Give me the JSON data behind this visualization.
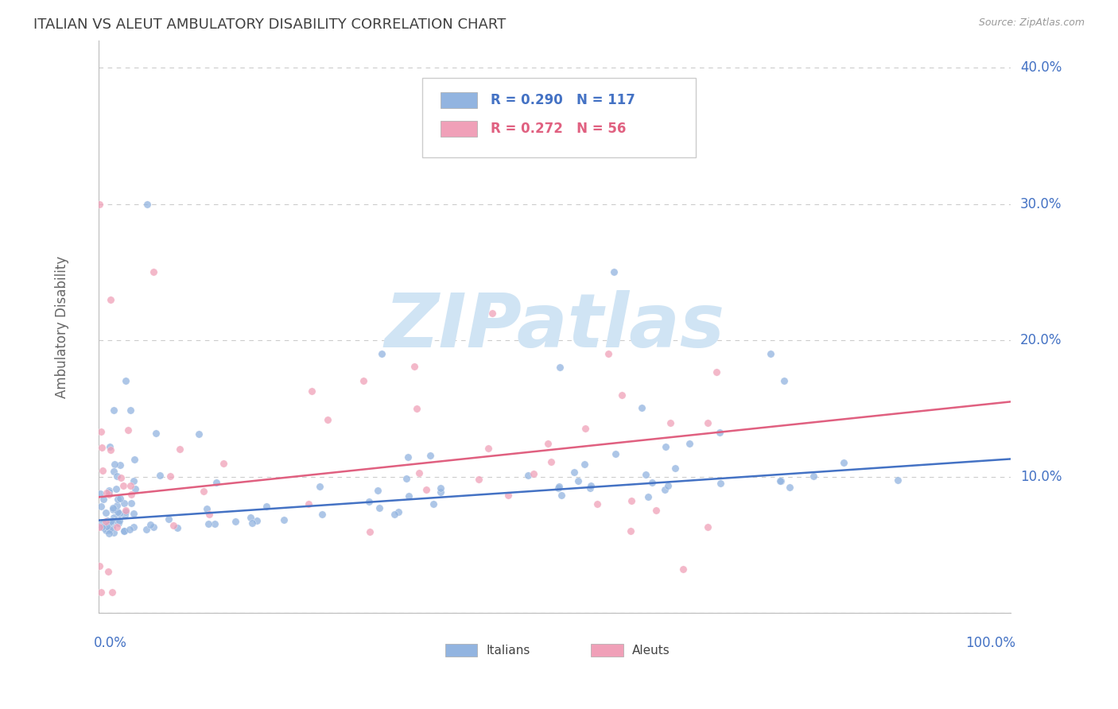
{
  "title": "ITALIAN VS ALEUT AMBULATORY DISABILITY CORRELATION CHART",
  "source_text": "Source: ZipAtlas.com",
  "ylabel": "Ambulatory Disability",
  "legend_label1": "Italians",
  "legend_label2": "Aleuts",
  "r1": 0.29,
  "n1": 117,
  "r2": 0.272,
  "n2": 56,
  "color_italian": "#92b4e0",
  "color_aleut": "#f0a0b8",
  "color_italian_line": "#4472c4",
  "color_aleut_line": "#e06080",
  "color_title": "#404040",
  "color_axis_label": "#4472c4",
  "watermark_color": "#d0e4f4",
  "ylim_max": 0.42,
  "xlim_max": 1.0,
  "ytick_positions": [
    0.0,
    0.1,
    0.2,
    0.3,
    0.4
  ],
  "ytick_labels": [
    "",
    "10.0%",
    "20.0%",
    "30.0%",
    "40.0%"
  ],
  "italian_line_intercept": 0.068,
  "italian_line_slope": 0.045,
  "aleut_line_intercept": 0.085,
  "aleut_line_slope": 0.07
}
